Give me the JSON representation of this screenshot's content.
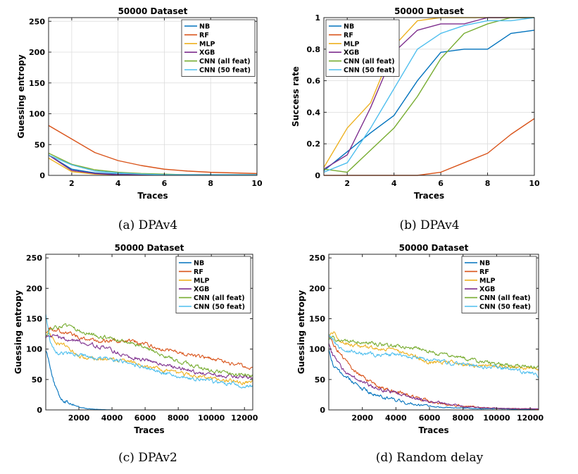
{
  "chart_data": [
    {
      "type": "line",
      "caption": "(a) DPAv4",
      "title": "50000 Dataset",
      "xlabel": "Traces",
      "ylabel": "Guessing entropy",
      "xlim": [
        1,
        10
      ],
      "ylim": [
        0,
        256
      ],
      "xticks": [
        2,
        4,
        6,
        8,
        10
      ],
      "yticks": [
        0,
        50,
        100,
        150,
        200,
        250
      ],
      "grid": true,
      "legend_position": "top-right",
      "x": [
        1,
        2,
        3,
        4,
        5,
        6,
        7,
        8,
        9,
        10
      ],
      "series": [
        {
          "name": "NB",
          "color": "#0072BD",
          "values": [
            33,
            10,
            4,
            2,
            1,
            1,
            1,
            1,
            1,
            1
          ]
        },
        {
          "name": "RF",
          "color": "#D95319",
          "values": [
            81,
            59,
            37,
            24,
            16,
            10,
            7,
            5,
            4,
            3
          ]
        },
        {
          "name": "MLP",
          "color": "#EDB120",
          "values": [
            28,
            6,
            2,
            1,
            1,
            1,
            1,
            1,
            1,
            1
          ]
        },
        {
          "name": "XGB",
          "color": "#7E2F8E",
          "values": [
            33,
            8,
            3,
            1,
            1,
            1,
            1,
            1,
            1,
            1
          ]
        },
        {
          "name": "CNN (all feat)",
          "color": "#77AC30",
          "values": [
            36,
            18,
            9,
            5,
            3,
            2,
            1,
            1,
            1,
            1
          ]
        },
        {
          "name": "CNN (50 feat)",
          "color": "#4DBEEE",
          "values": [
            33,
            17,
            7,
            4,
            2,
            1,
            1,
            1,
            1,
            1
          ]
        }
      ]
    },
    {
      "type": "line",
      "caption": "(b) DPAv4",
      "title": "50000 Dataset",
      "xlabel": "Traces",
      "ylabel": "Success rate",
      "xlim": [
        1,
        10
      ],
      "ylim": [
        0,
        1
      ],
      "xticks": [
        2,
        4,
        6,
        8,
        10
      ],
      "yticks": [
        0,
        0.2,
        0.4,
        0.6,
        0.8,
        1
      ],
      "grid": true,
      "legend_position": "top-left",
      "x": [
        1,
        2,
        3,
        4,
        5,
        6,
        7,
        8,
        9,
        10
      ],
      "series": [
        {
          "name": "NB",
          "color": "#0072BD",
          "values": [
            0.03,
            0.15,
            0.27,
            0.38,
            0.6,
            0.78,
            0.8,
            0.8,
            0.9,
            0.92
          ]
        },
        {
          "name": "RF",
          "color": "#D95319",
          "values": [
            0,
            0,
            0,
            0,
            0,
            0.02,
            0.08,
            0.14,
            0.26,
            0.36
          ]
        },
        {
          "name": "MLP",
          "color": "#EDB120",
          "values": [
            0.05,
            0.3,
            0.46,
            0.82,
            0.98,
            1,
            1,
            1,
            1,
            1
          ]
        },
        {
          "name": "XGB",
          "color": "#7E2F8E",
          "values": [
            0.04,
            0.13,
            0.43,
            0.78,
            0.92,
            0.96,
            0.96,
            1,
            1,
            1
          ]
        },
        {
          "name": "CNN (all feat)",
          "color": "#77AC30",
          "values": [
            0.04,
            0.02,
            0.16,
            0.3,
            0.5,
            0.74,
            0.9,
            0.96,
            1,
            1
          ]
        },
        {
          "name": "CNN (50 feat)",
          "color": "#4DBEEE",
          "values": [
            0.02,
            0.08,
            0.3,
            0.55,
            0.8,
            0.9,
            0.95,
            0.98,
            0.98,
            1
          ]
        }
      ]
    },
    {
      "type": "line",
      "caption": "(c) DPAv2",
      "title": "50000 Dataset",
      "xlabel": "Traces",
      "ylabel": "Guessing entropy",
      "xlim": [
        0,
        12500
      ],
      "ylim": [
        0,
        256
      ],
      "xticks": [
        2000,
        4000,
        6000,
        8000,
        10000,
        12000
      ],
      "yticks": [
        0,
        50,
        100,
        150,
        200,
        250
      ],
      "grid": false,
      "legend_position": "top-right",
      "x": [
        0,
        250,
        500,
        750,
        1000,
        1500,
        2000,
        2500,
        3000,
        4000,
        5000,
        6000,
        7000,
        8000,
        9000,
        10000,
        11000,
        12000,
        12500
      ],
      "series": [
        {
          "name": "NB",
          "color": "#0072BD",
          "values": [
            100,
            75,
            45,
            25,
            17,
            11,
            5,
            2,
            1,
            0,
            0,
            0,
            0,
            0,
            0,
            0,
            0,
            0,
            0
          ]
        },
        {
          "name": "RF",
          "color": "#D95319",
          "values": [
            130,
            135,
            133,
            131,
            129,
            125,
            120,
            117,
            113,
            113,
            115,
            108,
            100,
            95,
            88,
            84,
            78,
            72,
            70
          ]
        },
        {
          "name": "MLP",
          "color": "#EDB120",
          "values": [
            130,
            125,
            115,
            110,
            107,
            100,
            88,
            85,
            83,
            83,
            80,
            73,
            65,
            60,
            56,
            52,
            48,
            45,
            44
          ]
        },
        {
          "name": "XGB",
          "color": "#7E2F8E",
          "values": [
            120,
            123,
            122,
            120,
            118,
            115,
            113,
            110,
            106,
            98,
            88,
            82,
            75,
            70,
            63,
            57,
            55,
            54,
            54
          ]
        },
        {
          "name": "CNN (all feat)",
          "color": "#77AC30",
          "values": [
            125,
            130,
            134,
            137,
            138,
            135,
            130,
            127,
            123,
            118,
            110,
            103,
            90,
            80,
            72,
            65,
            60,
            57,
            56
          ]
        },
        {
          "name": "CNN (50 feat)",
          "color": "#4DBEEE",
          "values": [
            160,
            110,
            100,
            95,
            94,
            92,
            90,
            88,
            85,
            83,
            78,
            70,
            62,
            55,
            50,
            47,
            43,
            40,
            39
          ]
        }
      ]
    },
    {
      "type": "line",
      "caption": "(d) Random delay",
      "title": "50000 Dataset",
      "xlabel": "Traces",
      "ylabel": "Guessing entropy",
      "xlim": [
        0,
        12500
      ],
      "ylim": [
        0,
        256
      ],
      "xticks": [
        2000,
        4000,
        6000,
        8000,
        10000,
        12000
      ],
      "yticks": [
        0,
        50,
        100,
        150,
        200,
        250
      ],
      "grid": false,
      "legend_position": "top-right",
      "x": [
        0,
        250,
        500,
        750,
        1000,
        1500,
        2000,
        2500,
        3000,
        4000,
        5000,
        6000,
        7000,
        8000,
        9000,
        10000,
        11000,
        12000,
        12500
      ],
      "series": [
        {
          "name": "NB",
          "color": "#0072BD",
          "values": [
            100,
            75,
            65,
            60,
            55,
            45,
            35,
            28,
            22,
            15,
            10,
            6,
            4,
            3,
            2,
            2,
            1,
            1,
            1
          ]
        },
        {
          "name": "RF",
          "color": "#D95319",
          "values": [
            120,
            110,
            100,
            90,
            80,
            65,
            55,
            45,
            38,
            30,
            22,
            16,
            10,
            7,
            4,
            3,
            2,
            2,
            1
          ]
        },
        {
          "name": "MLP",
          "color": "#EDB120",
          "values": [
            125,
            128,
            120,
            112,
            110,
            107,
            103,
            102,
            100,
            98,
            90,
            78,
            80,
            75,
            72,
            72,
            70,
            68,
            66
          ]
        },
        {
          "name": "XGB",
          "color": "#7E2F8E",
          "values": [
            110,
            90,
            80,
            70,
            62,
            52,
            45,
            40,
            35,
            28,
            20,
            14,
            10,
            6,
            4,
            3,
            2,
            2,
            2
          ]
        },
        {
          "name": "CNN (all feat)",
          "color": "#77AC30",
          "values": [
            115,
            118,
            115,
            112,
            112,
            113,
            112,
            110,
            108,
            105,
            103,
            96,
            90,
            85,
            80,
            76,
            73,
            72,
            71
          ]
        },
        {
          "name": "CNN (50 feat)",
          "color": "#4DBEEE",
          "values": [
            125,
            115,
            105,
            100,
            98,
            96,
            93,
            92,
            90,
            90,
            88,
            82,
            78,
            74,
            72,
            70,
            66,
            60,
            57
          ]
        }
      ]
    }
  ]
}
